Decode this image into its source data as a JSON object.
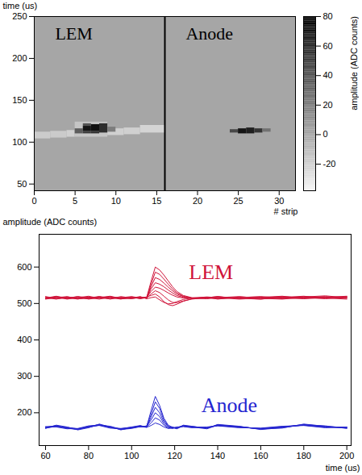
{
  "chart_data": [
    {
      "type": "heatmap",
      "xlabel": "# strip",
      "ylabel": "time (us)",
      "xlim": [
        0,
        32
      ],
      "xticks": [
        0,
        5,
        10,
        15,
        20,
        25,
        30
      ],
      "ylim": [
        42,
        250
      ],
      "yticks": [
        50,
        100,
        150,
        200,
        250
      ],
      "annotations": [
        "LEM",
        "Anode"
      ],
      "divider_strip": 16,
      "color_label": "amplitude (ADC counts)",
      "color_range": [
        -38,
        80
      ],
      "color_ticks": [
        -20,
        0,
        20,
        40,
        60,
        80
      ],
      "cells": [
        {
          "strip_start": 0,
          "strip_end": 32,
          "time_start": 42,
          "time_end": 250,
          "value": 0
        },
        {
          "strip_start": 0,
          "strip_end": 2,
          "time_start": 104,
          "time_end": 112,
          "value": -18
        },
        {
          "strip_start": 2,
          "strip_end": 4,
          "time_start": 105,
          "time_end": 113,
          "value": -18
        },
        {
          "strip_start": 4,
          "strip_end": 5,
          "time_start": 106,
          "time_end": 114,
          "value": -20
        },
        {
          "strip_start": 5,
          "strip_end": 9,
          "time_start": 106,
          "time_end": 124,
          "value": -15
        },
        {
          "strip_start": 9,
          "strip_end": 11,
          "time_start": 108,
          "time_end": 116,
          "value": -20
        },
        {
          "strip_start": 11,
          "strip_end": 13,
          "time_start": 109,
          "time_end": 117,
          "value": -20
        },
        {
          "strip_start": 13,
          "strip_end": 16,
          "time_start": 111,
          "time_end": 120,
          "value": -22
        },
        {
          "strip_start": 5,
          "strip_end": 6,
          "time_start": 110,
          "time_end": 116,
          "value": 35
        },
        {
          "strip_start": 6,
          "strip_end": 7,
          "time_start": 110,
          "time_end": 113,
          "value": 50
        },
        {
          "strip_start": 6,
          "strip_end": 7,
          "time_start": 113,
          "time_end": 119,
          "value": 70
        },
        {
          "strip_start": 6,
          "strip_end": 7,
          "time_start": 119,
          "time_end": 122,
          "value": 40
        },
        {
          "strip_start": 7,
          "strip_end": 8,
          "time_start": 110,
          "time_end": 113,
          "value": 55
        },
        {
          "strip_start": 7,
          "strip_end": 8,
          "time_start": 113,
          "time_end": 121,
          "value": 72
        },
        {
          "strip_start": 8,
          "strip_end": 9,
          "time_start": 111,
          "time_end": 122,
          "value": 58
        },
        {
          "strip_start": 9,
          "strip_end": 10,
          "time_start": 112,
          "time_end": 118,
          "value": 20
        },
        {
          "strip_start": 24,
          "strip_end": 25,
          "time_start": 111,
          "time_end": 115,
          "value": 45
        },
        {
          "strip_start": 25,
          "strip_end": 26,
          "time_start": 110,
          "time_end": 116,
          "value": 70
        },
        {
          "strip_start": 26,
          "strip_end": 27,
          "time_start": 110,
          "time_end": 117,
          "value": 65
        },
        {
          "strip_start": 27,
          "strip_end": 28,
          "time_start": 111,
          "time_end": 116,
          "value": 55
        },
        {
          "strip_start": 28,
          "strip_end": 29,
          "time_start": 112,
          "time_end": 116,
          "value": 25
        }
      ]
    },
    {
      "type": "line",
      "xlabel": "time (us)",
      "ylabel": "amplitude (ADC counts)",
      "xlim": [
        57,
        202
      ],
      "xticks": [
        60,
        80,
        100,
        120,
        140,
        160,
        180,
        200
      ],
      "ylim": [
        110,
        690
      ],
      "yticks": [
        200,
        300,
        400,
        500,
        600
      ],
      "x": [
        60,
        65,
        70,
        75,
        80,
        85,
        90,
        95,
        100,
        104,
        107,
        109,
        111,
        113,
        115,
        117,
        119,
        121,
        124,
        128,
        135,
        140,
        150,
        160,
        170,
        180,
        190,
        200
      ],
      "series": [
        {
          "name": "LEM",
          "color": "#d0143a",
          "traces": [
            [
              515,
              518,
              512,
              516,
              520,
              514,
              517,
              513,
              516,
              515,
              517,
              560,
              600,
              592,
              578,
              562,
              546,
              533,
              522,
              516,
              514,
              518,
              515,
              512,
              517,
              520,
              515,
              518
            ],
            [
              512,
              516,
              519,
              513,
              515,
              519,
              512,
              517,
              514,
              516,
              515,
              552,
              586,
              580,
              567,
              553,
              540,
              529,
              520,
              515,
              517,
              512,
              518,
              516,
              514,
              518,
              521,
              516
            ],
            [
              518,
              513,
              515,
              519,
              512,
              516,
              520,
              514,
              517,
              513,
              516,
              546,
              571,
              566,
              556,
              545,
              535,
              526,
              519,
              514,
              516,
              519,
              513,
              517,
              520,
              514,
              516,
              519
            ],
            [
              514,
              519,
              516,
              512,
              518,
              515,
              513,
              519,
              515,
              518,
              514,
              540,
              557,
              553,
              546,
              537,
              529,
              522,
              517,
              515,
              513,
              516,
              519,
              514,
              512,
              517,
              519,
              514
            ],
            [
              516,
              512,
              518,
              515,
              513,
              519,
              516,
              512,
              518,
              514,
              517,
              533,
              545,
              542,
              536,
              529,
              523,
              518,
              515,
              514,
              517,
              513,
              516,
              519,
              515,
              513,
              517,
              520
            ],
            [
              513,
              517,
              514,
              519,
              516,
              512,
              518,
              515,
              513,
              517,
              515,
              526,
              535,
              530,
              520,
              510,
              503,
              502,
              507,
              512,
              516,
              519,
              514,
              512,
              518,
              516,
              513,
              517
            ],
            [
              519,
              514,
              517,
              513,
              517,
              518,
              514,
              516,
              519,
              515,
              518,
              522,
              526,
              518,
              505,
              497,
              494,
              498,
              506,
              513,
              515,
              514,
              517,
              518,
              513,
              519,
              515,
              512
            ],
            [
              515,
              520,
              513,
              517,
              514,
              516,
              519,
              513,
              515,
              519,
              513,
              516,
              518,
              510,
              503,
              499,
              500,
              505,
              511,
              515,
              518,
              516,
              512,
              515,
              519,
              515,
              518,
              516
            ]
          ]
        },
        {
          "name": "Anode",
          "color": "#2626d0",
          "traces": [
            [
              160,
              165,
              158,
              154,
              162,
              168,
              160,
              155,
              158,
              163,
              162,
              205,
              245,
              220,
              185,
              166,
              160,
              158,
              165,
              162,
              158,
              167,
              162,
              155,
              160,
              168,
              162,
              158
            ],
            [
              158,
              163,
              160,
              156,
              160,
              166,
              162,
              153,
              160,
              161,
              164,
              195,
              230,
              212,
              180,
              163,
              158,
              160,
              163,
              160,
              160,
              165,
              160,
              157,
              162,
              166,
              160,
              160
            ],
            [
              162,
              161,
              156,
              157,
              164,
              165,
              158,
              156,
              161,
              165,
              160,
              188,
              215,
              200,
              175,
              162,
              161,
              157,
              166,
              163,
              157,
              168,
              163,
              154,
              159,
              167,
              164,
              157
            ],
            [
              157,
              166,
              161,
              153,
              159,
              169,
              161,
              154,
              157,
              162,
              163,
              180,
              200,
              190,
              170,
              160,
              157,
              161,
              162,
              159,
              161,
              164,
              159,
              158,
              163,
              165,
              159,
              161
            ],
            [
              161,
              164,
              157,
              155,
              163,
              167,
              159,
              157,
              160,
              164,
              161,
              172,
              186,
              180,
              166,
              158,
              159,
              156,
              164,
              161,
              156,
              166,
              161,
              156,
              158,
              169,
              163,
              159
            ],
            [
              159,
              162,
              159,
              156,
              161,
              166,
              163,
              155,
              159,
              162,
              160,
              165,
              172,
              168,
              161,
              157,
              158,
              160,
              163,
              162,
              159,
              165,
              162,
              156,
              161,
              166,
              161,
              160
            ]
          ]
        }
      ]
    }
  ]
}
